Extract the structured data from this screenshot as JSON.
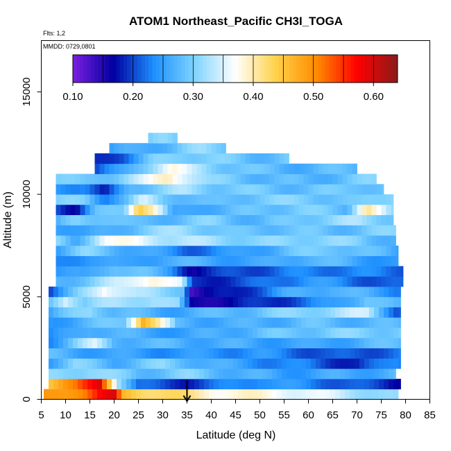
{
  "chart_data": {
    "type": "heatmap",
    "title": "ATOM1 Northeast_Pacific CH3I_TOGA",
    "annotations": {
      "flights": "Flts: 1,2",
      "dates": "MMDD: 0729,0801"
    },
    "xlabel": "Latitude (deg N)",
    "ylabel": "Altitude (m)",
    "xlim": [
      5,
      85
    ],
    "ylim": [
      0,
      17500
    ],
    "xticks": [
      5,
      10,
      15,
      20,
      25,
      30,
      35,
      40,
      45,
      50,
      55,
      60,
      65,
      70,
      75,
      80,
      85
    ],
    "yticks": [
      0,
      5000,
      10000,
      15000
    ],
    "grid": false,
    "colorbar": {
      "placement": "top",
      "min": 0.1,
      "max": 0.64,
      "ticks": [
        "0.10",
        "0.20",
        "0.30",
        "0.40",
        "0.50",
        "0.60"
      ],
      "tick_values": [
        0.1,
        0.2,
        0.3,
        0.4,
        0.5,
        0.6
      ],
      "colors": [
        "#7b1fe0",
        "#0000a0",
        "#1e90ff",
        "#7fd3ff",
        "#ffffff",
        "#ffd24a",
        "#ff8c00",
        "#ff0000",
        "#8b1a1a"
      ]
    },
    "marker": {
      "x": 35,
      "y": 250
    },
    "layers": [
      {
        "alt": 250,
        "xmin": 5.5,
        "xmax": 78.5,
        "stops": [
          [
            5.5,
            0.48
          ],
          [
            14,
            0.52
          ],
          [
            17,
            0.56
          ],
          [
            20,
            0.58
          ],
          [
            22,
            0.46
          ],
          [
            26,
            0.44
          ],
          [
            32,
            0.42
          ],
          [
            40,
            0.39
          ],
          [
            55,
            0.37
          ],
          [
            70,
            0.33
          ],
          [
            78,
            0.3
          ]
        ]
      },
      {
        "alt": 750,
        "xmin": 6.5,
        "xmax": 79,
        "stops": [
          [
            6.5,
            0.46
          ],
          [
            12,
            0.5
          ],
          [
            17,
            0.6
          ],
          [
            21,
            0.33
          ],
          [
            25,
            0.21
          ],
          [
            35,
            0.19
          ],
          [
            50,
            0.25
          ],
          [
            65,
            0.22
          ],
          [
            78,
            0.18
          ]
        ]
      },
      {
        "alt": 1250,
        "xmin": 6.5,
        "xmax": 78,
        "stops": [
          [
            6.5,
            0.3
          ],
          [
            15,
            0.32
          ],
          [
            25,
            0.28
          ],
          [
            35,
            0.3
          ],
          [
            45,
            0.27
          ],
          [
            55,
            0.25
          ],
          [
            70,
            0.26
          ],
          [
            78,
            0.27
          ]
        ]
      },
      {
        "alt": 1750,
        "xmin": 6.5,
        "xmax": 79,
        "stops": [
          [
            6.5,
            0.26
          ],
          [
            12,
            0.3
          ],
          [
            20,
            0.27
          ],
          [
            30,
            0.3
          ],
          [
            45,
            0.25
          ],
          [
            60,
            0.22
          ],
          [
            70,
            0.18
          ],
          [
            78,
            0.24
          ]
        ]
      },
      {
        "alt": 2250,
        "xmin": 6.5,
        "xmax": 79,
        "stops": [
          [
            6.5,
            0.27
          ],
          [
            20,
            0.25
          ],
          [
            35,
            0.24
          ],
          [
            50,
            0.24
          ],
          [
            65,
            0.2
          ],
          [
            78,
            0.22
          ]
        ]
      },
      {
        "alt": 2750,
        "xmin": 6.5,
        "xmax": 79,
        "stops": [
          [
            6.5,
            0.24
          ],
          [
            12,
            0.3
          ],
          [
            16,
            0.34
          ],
          [
            20,
            0.28
          ],
          [
            30,
            0.27
          ],
          [
            45,
            0.26
          ],
          [
            60,
            0.25
          ],
          [
            78,
            0.28
          ]
        ]
      },
      {
        "alt": 3250,
        "xmin": 6.5,
        "xmax": 79,
        "stops": [
          [
            6.5,
            0.22
          ],
          [
            15,
            0.28
          ],
          [
            25,
            0.26
          ],
          [
            35,
            0.25
          ],
          [
            50,
            0.28
          ],
          [
            65,
            0.3
          ],
          [
            78,
            0.3
          ]
        ]
      },
      {
        "alt": 3750,
        "xmin": 6.5,
        "xmax": 79,
        "stops": [
          [
            6.5,
            0.25
          ],
          [
            15,
            0.27
          ],
          [
            22,
            0.3
          ],
          [
            26,
            0.48
          ],
          [
            29,
            0.4
          ],
          [
            33,
            0.27
          ],
          [
            45,
            0.26
          ],
          [
            60,
            0.28
          ],
          [
            78,
            0.27
          ]
        ]
      },
      {
        "alt": 4250,
        "xmin": 6.5,
        "xmax": 79,
        "stops": [
          [
            6.5,
            0.25
          ],
          [
            15,
            0.32
          ],
          [
            20,
            0.28
          ],
          [
            30,
            0.26
          ],
          [
            40,
            0.27
          ],
          [
            55,
            0.3
          ],
          [
            65,
            0.32
          ],
          [
            72,
            0.34
          ],
          [
            78,
            0.22
          ]
        ]
      },
      {
        "alt": 4750,
        "xmin": 6.5,
        "xmax": 79,
        "stops": [
          [
            6.5,
            0.28
          ],
          [
            10,
            0.36
          ],
          [
            14,
            0.3
          ],
          [
            20,
            0.32
          ],
          [
            28,
            0.33
          ],
          [
            33,
            0.3
          ],
          [
            36,
            0.16
          ],
          [
            45,
            0.17
          ],
          [
            55,
            0.2
          ],
          [
            65,
            0.24
          ],
          [
            72,
            0.3
          ],
          [
            78,
            0.26
          ]
        ]
      },
      {
        "alt": 5250,
        "xmin": 6.5,
        "xmax": 79,
        "stops": [
          [
            6.5,
            0.2
          ],
          [
            12,
            0.28
          ],
          [
            18,
            0.38
          ],
          [
            25,
            0.32
          ],
          [
            34,
            0.3
          ],
          [
            36,
            0.14
          ],
          [
            45,
            0.18
          ],
          [
            55,
            0.25
          ],
          [
            65,
            0.28
          ],
          [
            78,
            0.24
          ]
        ]
      },
      {
        "alt": 5750,
        "xmin": 8,
        "xmax": 79.5,
        "stops": [
          [
            8,
            0.27
          ],
          [
            15,
            0.3
          ],
          [
            22,
            0.34
          ],
          [
            28,
            0.4
          ],
          [
            34,
            0.34
          ],
          [
            36,
            0.18
          ],
          [
            50,
            0.21
          ],
          [
            60,
            0.25
          ],
          [
            70,
            0.22
          ],
          [
            79,
            0.2
          ]
        ]
      },
      {
        "alt": 6250,
        "xmin": 8,
        "xmax": 79.5,
        "stops": [
          [
            8,
            0.25
          ],
          [
            14,
            0.24
          ],
          [
            20,
            0.3
          ],
          [
            26,
            0.28
          ],
          [
            32,
            0.24
          ],
          [
            36,
            0.17
          ],
          [
            45,
            0.2
          ],
          [
            55,
            0.22
          ],
          [
            65,
            0.23
          ],
          [
            79,
            0.22
          ]
        ]
      },
      {
        "alt": 6750,
        "xmin": 8,
        "xmax": 78.5,
        "stops": [
          [
            8,
            0.22
          ],
          [
            15,
            0.26
          ],
          [
            22,
            0.24
          ],
          [
            30,
            0.27
          ],
          [
            40,
            0.26
          ],
          [
            50,
            0.25
          ],
          [
            60,
            0.28
          ],
          [
            70,
            0.26
          ],
          [
            78,
            0.24
          ]
        ]
      },
      {
        "alt": 7250,
        "xmin": 8,
        "xmax": 78.5,
        "stops": [
          [
            8,
            0.26
          ],
          [
            14,
            0.3
          ],
          [
            20,
            0.28
          ],
          [
            28,
            0.25
          ],
          [
            35,
            0.22
          ],
          [
            45,
            0.24
          ],
          [
            55,
            0.28
          ],
          [
            65,
            0.3
          ],
          [
            78,
            0.26
          ]
        ]
      },
      {
        "alt": 7750,
        "xmin": 8,
        "xmax": 78,
        "stops": [
          [
            8,
            0.3
          ],
          [
            12,
            0.26
          ],
          [
            18,
            0.37
          ],
          [
            25,
            0.36
          ],
          [
            32,
            0.33
          ],
          [
            40,
            0.32
          ],
          [
            50,
            0.3
          ],
          [
            60,
            0.31
          ],
          [
            70,
            0.3
          ],
          [
            78,
            0.27
          ]
        ]
      },
      {
        "alt": 8250,
        "xmin": 8,
        "xmax": 78,
        "stops": [
          [
            8,
            0.27
          ],
          [
            14,
            0.24
          ],
          [
            20,
            0.27
          ],
          [
            26,
            0.3
          ],
          [
            34,
            0.32
          ],
          [
            45,
            0.28
          ],
          [
            55,
            0.29
          ],
          [
            65,
            0.28
          ],
          [
            77,
            0.3
          ]
        ]
      },
      {
        "alt": 8750,
        "xmin": 8,
        "xmax": 77.5,
        "stops": [
          [
            8,
            0.25
          ],
          [
            12,
            0.3
          ],
          [
            18,
            0.3
          ],
          [
            24,
            0.27
          ],
          [
            30,
            0.28
          ],
          [
            40,
            0.3
          ],
          [
            50,
            0.27
          ],
          [
            60,
            0.3
          ],
          [
            70,
            0.32
          ],
          [
            77,
            0.3
          ]
        ]
      },
      {
        "alt": 9250,
        "xmin": 8,
        "xmax": 77.5,
        "stops": [
          [
            8,
            0.22
          ],
          [
            12,
            0.17
          ],
          [
            16,
            0.27
          ],
          [
            22,
            0.3
          ],
          [
            25,
            0.46
          ],
          [
            28,
            0.4
          ],
          [
            32,
            0.24
          ],
          [
            38,
            0.27
          ],
          [
            48,
            0.28
          ],
          [
            58,
            0.3
          ],
          [
            68,
            0.28
          ],
          [
            72,
            0.42
          ],
          [
            77,
            0.3
          ]
        ]
      },
      {
        "alt": 9750,
        "xmin": 8,
        "xmax": 77.5,
        "stops": [
          [
            8,
            0.29
          ],
          [
            14,
            0.3
          ],
          [
            18,
            0.24
          ],
          [
            23,
            0.28
          ],
          [
            26,
            0.34
          ],
          [
            30,
            0.3
          ],
          [
            40,
            0.27
          ],
          [
            50,
            0.3
          ],
          [
            60,
            0.3
          ],
          [
            70,
            0.28
          ],
          [
            77,
            0.32
          ]
        ]
      },
      {
        "alt": 10250,
        "xmin": 8,
        "xmax": 75.5,
        "stops": [
          [
            8,
            0.25
          ],
          [
            14,
            0.24
          ],
          [
            18,
            0.16
          ],
          [
            23,
            0.28
          ],
          [
            28,
            0.3
          ],
          [
            34,
            0.32
          ],
          [
            40,
            0.3
          ],
          [
            50,
            0.29
          ],
          [
            60,
            0.28
          ],
          [
            70,
            0.3
          ],
          [
            75,
            0.28
          ]
        ]
      },
      {
        "alt": 10750,
        "xmin": 8,
        "xmax": 74,
        "stops": [
          [
            8,
            0.3
          ],
          [
            14,
            0.28
          ],
          [
            20,
            0.3
          ],
          [
            26,
            0.34
          ],
          [
            31,
            0.4
          ],
          [
            35,
            0.36
          ],
          [
            40,
            0.3
          ],
          [
            50,
            0.28
          ],
          [
            60,
            0.27
          ],
          [
            70,
            0.29
          ],
          [
            74,
            0.3
          ]
        ]
      },
      {
        "alt": 11250,
        "xmin": 16,
        "xmax": 70,
        "stops": [
          [
            16,
            0.2
          ],
          [
            22,
            0.25
          ],
          [
            28,
            0.33
          ],
          [
            32,
            0.38
          ],
          [
            36,
            0.33
          ],
          [
            42,
            0.3
          ],
          [
            50,
            0.28
          ],
          [
            60,
            0.27
          ],
          [
            70,
            0.28
          ]
        ]
      },
      {
        "alt": 11750,
        "xmin": 16,
        "xmax": 56,
        "stops": [
          [
            16,
            0.18
          ],
          [
            22,
            0.22
          ],
          [
            28,
            0.29
          ],
          [
            34,
            0.31
          ],
          [
            40,
            0.3
          ],
          [
            48,
            0.28
          ],
          [
            56,
            0.29
          ]
        ]
      },
      {
        "alt": 12250,
        "xmin": 19,
        "xmax": 43,
        "stops": [
          [
            19,
            0.24
          ],
          [
            26,
            0.27
          ],
          [
            32,
            0.28
          ],
          [
            38,
            0.31
          ],
          [
            43,
            0.3
          ]
        ]
      },
      {
        "alt": 12750,
        "xmin": 27,
        "xmax": 33,
        "stops": [
          [
            27,
            0.29
          ],
          [
            30,
            0.3
          ],
          [
            33,
            0.29
          ]
        ]
      }
    ]
  }
}
